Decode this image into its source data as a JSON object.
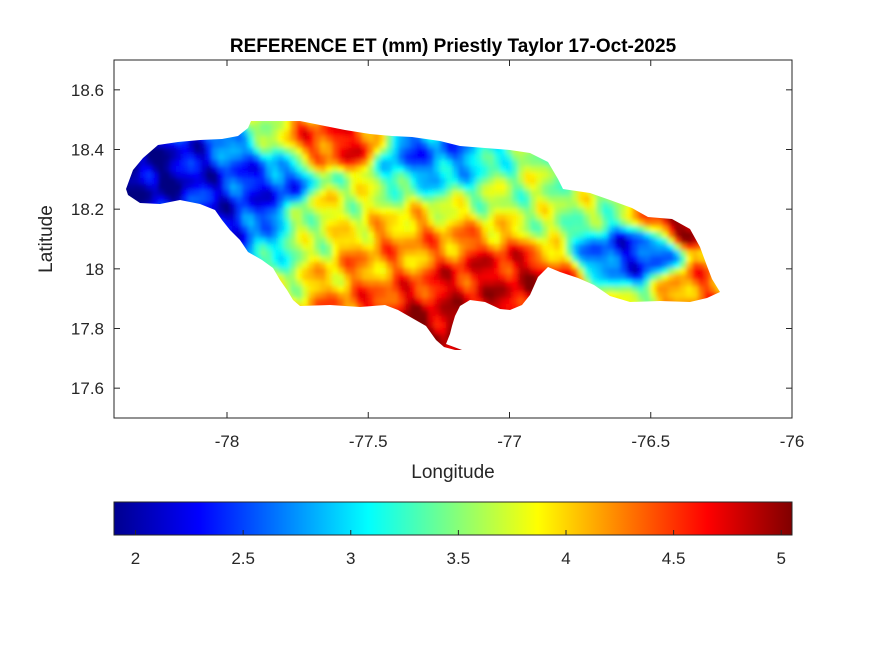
{
  "chart_data": {
    "type": "heatmap",
    "title": "REFERENCE ET (mm) Priestly Taylor 17-Oct-2025",
    "xlabel": "Longitude",
    "ylabel": "Latitude",
    "xlim": [
      -78.4,
      -76.0
    ],
    "ylim": [
      17.5,
      18.7
    ],
    "xticks": [
      -78,
      -77.5,
      -77,
      -76.5,
      -76
    ],
    "yticks": [
      17.6,
      17.8,
      18,
      18.2,
      18.4,
      18.6
    ],
    "xtick_labels": [
      "-78",
      "-77.5",
      "-77",
      "-76.5",
      "-76"
    ],
    "ytick_labels": [
      "17.6",
      "17.8",
      "18",
      "18.2",
      "18.4",
      "18.6"
    ],
    "colormap": "jet",
    "clim": [
      1.9,
      5.05
    ],
    "colorbar_ticks": [
      2,
      2.5,
      3,
      3.5,
      4,
      4.5,
      5
    ],
    "colorbar_tick_labels": [
      "2",
      "2.5",
      "3",
      "3.5",
      "4",
      "4.5",
      "5"
    ],
    "colorbar_location": "southoutside",
    "grid": false,
    "value_range": [
      1.9,
      5.05
    ],
    "hotspots": [
      {
        "lon": -78.3,
        "lat": 18.28,
        "value": 2.0
      },
      {
        "lon": -78.05,
        "lat": 18.2,
        "value": 2.3
      },
      {
        "lon": -77.85,
        "lat": 18.25,
        "value": 2.4
      },
      {
        "lon": -77.35,
        "lat": 18.4,
        "value": 2.6
      },
      {
        "lon": -76.55,
        "lat": 18.05,
        "value": 2.4
      },
      {
        "lon": -77.55,
        "lat": 18.42,
        "value": 4.6
      },
      {
        "lon": -77.4,
        "lat": 18.05,
        "value": 4.2
      },
      {
        "lon": -77.15,
        "lat": 17.92,
        "value": 4.7
      },
      {
        "lon": -77.2,
        "lat": 17.78,
        "value": 5.0
      },
      {
        "lon": -76.95,
        "lat": 17.93,
        "value": 4.8
      },
      {
        "lon": -76.35,
        "lat": 18.15,
        "value": 4.9
      },
      {
        "lon": -76.3,
        "lat": 17.95,
        "value": 4.3
      },
      {
        "lon": -77.65,
        "lat": 18.2,
        "value": 3.8
      },
      {
        "lon": -76.8,
        "lat": 18.25,
        "value": 3.6
      }
    ]
  }
}
